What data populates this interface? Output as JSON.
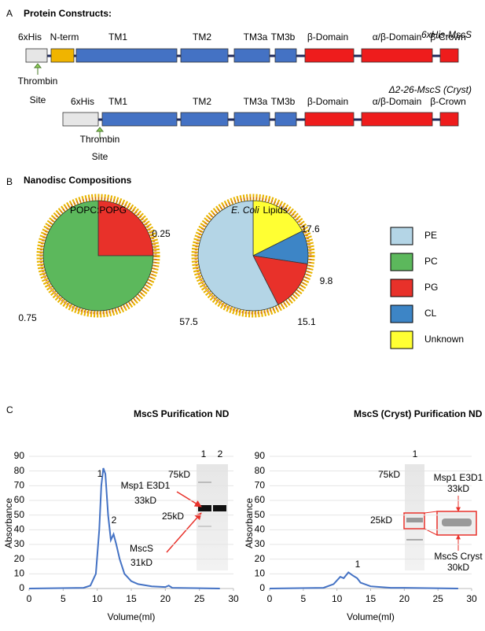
{
  "panel_a": {
    "label": "A",
    "title": "Protein Constructs:",
    "constructs": [
      {
        "name": "6xHis-MscS",
        "domains": [
          "6xHis",
          "N-term",
          "TM1",
          "TM2",
          "TM3a",
          "TM3b",
          "β-Domain",
          "α/β-Domain",
          "β-Crown"
        ],
        "site": [
          "Thrombin",
          "Site"
        ]
      },
      {
        "name": "Δ2-26-MscS (Cryst)",
        "domains": [
          "6xHis",
          "TM1",
          "TM2",
          "TM3a",
          "TM3b",
          "β-Domain",
          "α/β-Domain",
          "β-Crown"
        ],
        "site": [
          "Thrombin",
          "Site"
        ]
      }
    ]
  },
  "panel_b": {
    "label": "B",
    "title": "Nanodisc Compositions",
    "legend": [
      {
        "name": "PE",
        "color": "#b4d5e6"
      },
      {
        "name": "PC",
        "color": "#5cb85c"
      },
      {
        "name": "PG",
        "color": "#e8312a"
      },
      {
        "name": "CL",
        "color": "#3d85c6"
      },
      {
        "name": "Unknown",
        "color": "#ffff33"
      }
    ]
  },
  "panel_c": {
    "label": "C"
  },
  "chart_data": [
    {
      "type": "pie",
      "title": "POPC:POPG",
      "values": [
        0.25,
        0.75
      ],
      "colors": [
        "#e8312a",
        "#5cb85c"
      ]
    },
    {
      "type": "pie",
      "title_italic": "E. Coli",
      "title": "Lipids",
      "values": [
        17.6,
        9.8,
        15.1,
        57.5
      ],
      "colors": [
        "#ffff33",
        "#3d85c6",
        "#e8312a",
        "#b4d5e6"
      ]
    },
    {
      "type": "line",
      "title": "MscS Purification ND",
      "x_label": "Volume(ml)",
      "y_label": "Absorbance",
      "xlim": [
        0,
        30
      ],
      "ylim": [
        0,
        90
      ],
      "xticks": [
        0,
        5,
        10,
        15,
        20,
        25,
        30
      ],
      "yticks": [
        0,
        10,
        20,
        30,
        40,
        50,
        60,
        70,
        80,
        90
      ],
      "series": [
        {
          "color": "#4472c4",
          "x": [
            0,
            8,
            9,
            9.8,
            10.3,
            10.6,
            10.9,
            11.2,
            11.6,
            12,
            12.4,
            12.8,
            13.3,
            14,
            15,
            16,
            18,
            20,
            20.5,
            21,
            28
          ],
          "values": [
            0,
            0.5,
            2,
            10,
            40,
            70,
            82,
            78,
            50,
            33,
            37,
            30,
            20,
            10,
            5,
            3,
            1.5,
            1,
            2,
            0.5,
            0
          ]
        }
      ],
      "annotations": [
        "1",
        "2",
        "Msp1 E3D1",
        "33kD",
        "MscS",
        "31kD",
        "1",
        "2",
        "75kD",
        "25kD"
      ]
    },
    {
      "type": "line",
      "title": "MscS (Cryst) Purification ND",
      "x_label": "Volume(ml)",
      "y_label": "Absorbance",
      "xlim": [
        0,
        30
      ],
      "ylim": [
        0,
        90
      ],
      "xticks": [
        0,
        5,
        10,
        15,
        20,
        25,
        30
      ],
      "yticks": [
        0,
        10,
        20,
        30,
        40,
        50,
        60,
        70,
        80,
        90
      ],
      "series": [
        {
          "color": "#4472c4",
          "x": [
            0,
            8,
            9.5,
            10.5,
            11,
            11.7,
            12.3,
            13,
            13.5,
            15,
            18,
            20,
            28
          ],
          "values": [
            0,
            0.5,
            3,
            8,
            7,
            11,
            9,
            7,
            4,
            1.5,
            0.5,
            0.5,
            0
          ]
        }
      ],
      "annotations": [
        "1",
        "1",
        "75kD",
        "25kD",
        "Msp1 E3D1",
        "33kD",
        "MscS Cryst",
        "30kD"
      ]
    }
  ]
}
